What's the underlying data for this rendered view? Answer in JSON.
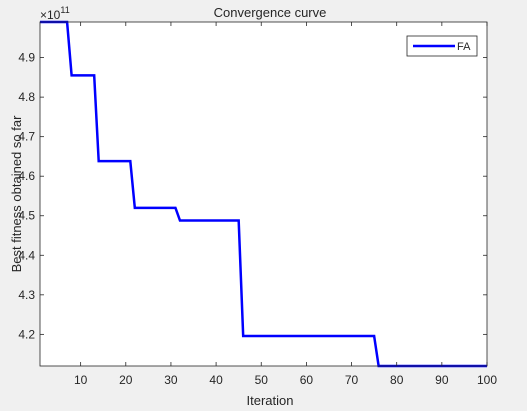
{
  "chart_data": {
    "type": "line",
    "title": "Convergence curve",
    "xlabel": "Iteration",
    "ylabel": "Best fitness obtained so far",
    "exponent_label": "×10",
    "exponent_power": "11",
    "xlim": [
      1,
      100
    ],
    "ylim": [
      4.12,
      4.99
    ],
    "x_ticks": [
      10,
      20,
      30,
      40,
      50,
      60,
      70,
      80,
      90,
      100
    ],
    "y_ticks": [
      4.2,
      4.3,
      4.4,
      4.5,
      4.6,
      4.7,
      4.8,
      4.9
    ],
    "grid": false,
    "legend_position": "top-right",
    "series": [
      {
        "name": "FA",
        "color": "#0000ff",
        "step_changes": [
          {
            "x": 1,
            "y": 4.99
          },
          {
            "x": 8,
            "y": 4.855
          },
          {
            "x": 14,
            "y": 4.638
          },
          {
            "x": 22,
            "y": 4.52
          },
          {
            "x": 32,
            "y": 4.488
          },
          {
            "x": 46,
            "y": 4.196
          },
          {
            "x": 76,
            "y": 4.12
          },
          {
            "x": 100,
            "y": 4.12
          }
        ]
      }
    ]
  }
}
